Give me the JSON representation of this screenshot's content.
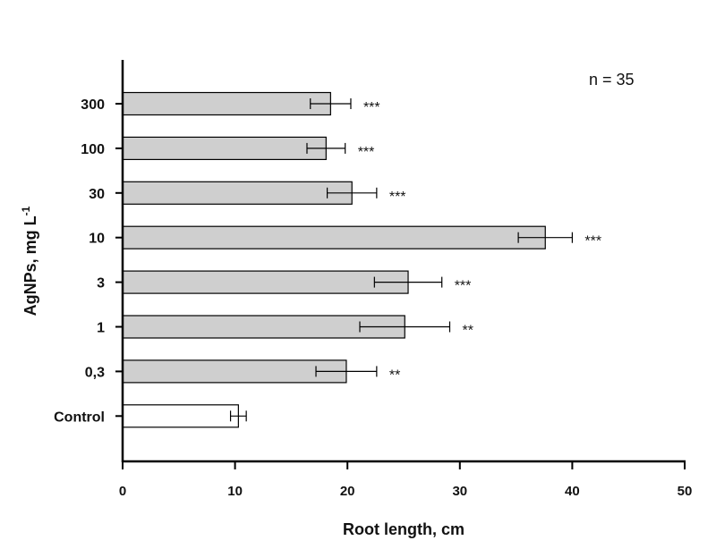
{
  "chart_data": {
    "type": "bar",
    "orientation": "horizontal",
    "note": "n = 35",
    "xlabel": "Root length, cm",
    "ylabel": "AgNPs, mg L",
    "ylabel_superscript": "-1",
    "xlim": [
      0,
      50
    ],
    "xticks": [
      "0",
      "10",
      "20",
      "30",
      "40",
      "50"
    ],
    "categories": [
      "300",
      "100",
      "30",
      "10",
      "3",
      "1",
      "0,3",
      "Control"
    ],
    "values": [
      18.5,
      18.1,
      20.4,
      37.6,
      25.4,
      25.1,
      19.9,
      10.3
    ],
    "errors": [
      1.8,
      1.7,
      2.2,
      2.4,
      3.0,
      4.0,
      2.7,
      0.7
    ],
    "significance": [
      "***",
      "***",
      "***",
      "***",
      "***",
      "**",
      "**",
      ""
    ],
    "colors": [
      "#cfcfcf",
      "#cfcfcf",
      "#cfcfcf",
      "#cfcfcf",
      "#cfcfcf",
      "#cfcfcf",
      "#cfcfcf",
      "#ffffff"
    ]
  }
}
